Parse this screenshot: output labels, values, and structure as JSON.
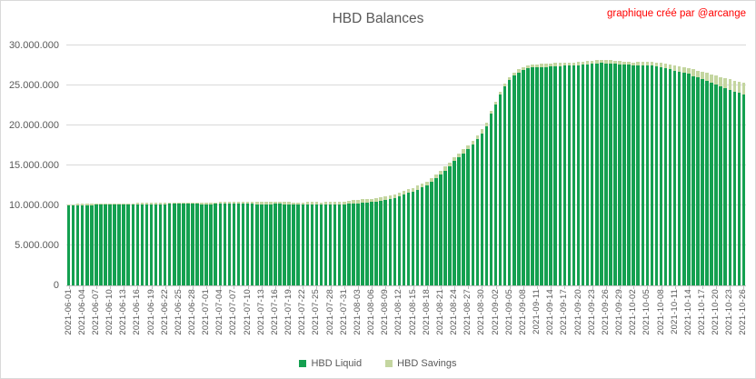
{
  "chart": {
    "title": "HBD Balances",
    "annotation": "graphique créé par @arcange",
    "legend": [
      {
        "label": "HBD Liquid",
        "color": "#14a050"
      },
      {
        "label": "HBD Savings",
        "color": "#c4d6a0"
      }
    ]
  },
  "chart_data": {
    "type": "bar",
    "stacked": true,
    "title": "HBD Balances",
    "xlabel": "",
    "ylabel": "",
    "unit": "HBD",
    "values_scale": 1000000,
    "ylim": [
      0,
      30000000
    ],
    "grid": true,
    "legend_position": "bottom",
    "y_tick_labels_bottom_to_top": [
      "0",
      "5.000.000",
      "10.000.000",
      "15.000.000",
      "20.000.000",
      "25.000.000",
      "30.000.000"
    ],
    "x_tick_labels": [
      "2021-06-01",
      "2021-06-04",
      "2021-06-07",
      "2021-06-10",
      "2021-06-13",
      "2021-06-16",
      "2021-06-19",
      "2021-06-22",
      "2021-06-25",
      "2021-06-28",
      "2021-07-01",
      "2021-07-04",
      "2021-07-07",
      "2021-07-10",
      "2021-07-13",
      "2021-07-16",
      "2021-07-19",
      "2021-07-22",
      "2021-07-25",
      "2021-07-28",
      "2021-07-31",
      "2021-08-03",
      "2021-08-06",
      "2021-08-09",
      "2021-08-12",
      "2021-08-15",
      "2021-08-18",
      "2021-08-21",
      "2021-08-24",
      "2021-08-27",
      "2021-08-30",
      "2021-09-02",
      "2021-09-05",
      "2021-09-08",
      "2021-09-11",
      "2021-09-14",
      "2021-09-17",
      "2021-09-20",
      "2021-09-23",
      "2021-09-26",
      "2021-09-29",
      "2021-10-02",
      "2021-10-05",
      "2021-10-08",
      "2021-10-11",
      "2021-10-14",
      "2021-10-17",
      "2021-10-20",
      "2021-10-23",
      "2021-10-26"
    ],
    "bars_per_tick": 3,
    "series": [
      {
        "name": "HBD Liquid",
        "color": "#14a050",
        "values_in_millions": [
          10.0,
          10.02,
          10.03,
          10.05,
          10.04,
          10.05,
          10.06,
          10.08,
          10.07,
          10.08,
          10.1,
          10.1,
          10.12,
          10.12,
          10.13,
          10.14,
          10.15,
          10.14,
          10.15,
          10.16,
          10.15,
          10.17,
          10.18,
          10.18,
          10.2,
          10.22,
          10.21,
          10.2,
          10.18,
          10.17,
          10.15,
          10.16,
          10.18,
          10.2,
          10.22,
          10.24,
          10.25,
          10.24,
          10.22,
          10.2,
          10.18,
          10.17,
          10.16,
          10.15,
          10.17,
          10.18,
          10.2,
          10.15,
          10.12,
          10.1,
          10.08,
          10.1,
          10.12,
          10.1,
          10.08,
          10.06,
          10.08,
          10.1,
          10.12,
          10.14,
          10.15,
          10.18,
          10.23,
          10.27,
          10.32,
          10.36,
          10.41,
          10.45,
          10.55,
          10.65,
          10.8,
          10.95,
          11.14,
          11.34,
          11.54,
          11.74,
          11.98,
          12.23,
          12.53,
          12.93,
          13.37,
          13.82,
          14.37,
          14.92,
          15.52,
          16.01,
          16.51,
          17.01,
          17.61,
          18.3,
          19.0,
          19.9,
          21.45,
          22.65,
          23.85,
          24.84,
          25.64,
          26.24,
          26.64,
          26.93,
          27.13,
          27.23,
          27.28,
          27.32,
          27.32,
          27.37,
          27.42,
          27.41,
          27.46,
          27.51,
          27.51,
          27.55,
          27.6,
          27.65,
          27.69,
          27.74,
          27.79,
          27.78,
          27.73,
          27.68,
          27.62,
          27.57,
          27.56,
          27.45,
          27.49,
          27.53,
          27.52,
          27.45,
          27.38,
          27.31,
          27.18,
          27.05,
          26.86,
          26.72,
          26.58,
          26.43,
          26.18,
          25.97,
          25.76,
          25.55,
          25.33,
          25.06,
          24.84,
          24.62,
          24.4,
          24.19,
          24.04,
          23.9
        ]
      },
      {
        "name": "HBD Savings",
        "color": "#c4d6a0",
        "values_in_millions": [
          0.15,
          0.15,
          0.15,
          0.15,
          0.15,
          0.15,
          0.15,
          0.15,
          0.15,
          0.15,
          0.15,
          0.15,
          0.15,
          0.15,
          0.15,
          0.15,
          0.15,
          0.15,
          0.15,
          0.15,
          0.15,
          0.15,
          0.15,
          0.15,
          0.15,
          0.15,
          0.15,
          0.15,
          0.15,
          0.15,
          0.2,
          0.2,
          0.21,
          0.21,
          0.22,
          0.22,
          0.23,
          0.23,
          0.24,
          0.24,
          0.25,
          0.25,
          0.26,
          0.26,
          0.27,
          0.27,
          0.28,
          0.28,
          0.29,
          0.29,
          0.3,
          0.3,
          0.31,
          0.31,
          0.32,
          0.32,
          0.33,
          0.33,
          0.34,
          0.34,
          0.35,
          0.42,
          0.42,
          0.43,
          0.43,
          0.44,
          0.44,
          0.45,
          0.45,
          0.45,
          0.45,
          0.45,
          0.46,
          0.46,
          0.46,
          0.46,
          0.47,
          0.47,
          0.47,
          0.47,
          0.48,
          0.48,
          0.48,
          0.48,
          0.48,
          0.49,
          0.49,
          0.49,
          0.49,
          0.5,
          0.5,
          0.5,
          0.35,
          0.35,
          0.35,
          0.36,
          0.36,
          0.36,
          0.36,
          0.37,
          0.37,
          0.37,
          0.37,
          0.38,
          0.38,
          0.38,
          0.38,
          0.39,
          0.39,
          0.39,
          0.39,
          0.4,
          0.4,
          0.4,
          0.41,
          0.41,
          0.41,
          0.42,
          0.42,
          0.42,
          0.43,
          0.43,
          0.44,
          0.45,
          0.46,
          0.47,
          0.48,
          0.5,
          0.52,
          0.54,
          0.57,
          0.6,
          0.64,
          0.68,
          0.72,
          0.77,
          0.82,
          0.88,
          0.94,
          1.0,
          1.07,
          1.14,
          1.21,
          1.28,
          1.35,
          1.41,
          1.46,
          1.5
        ]
      }
    ]
  }
}
